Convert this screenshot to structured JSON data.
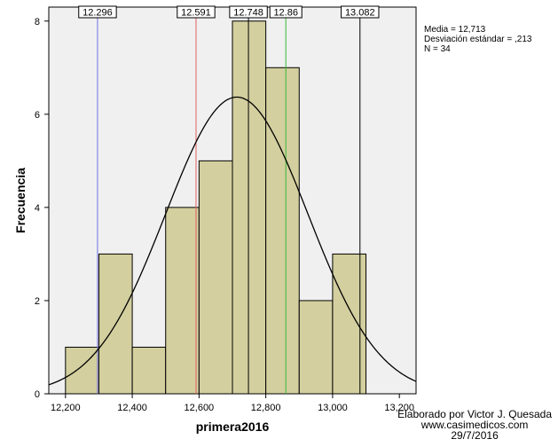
{
  "chart_data": {
    "type": "bar",
    "bins": [
      {
        "start": 12200,
        "end": 12300,
        "count": 1
      },
      {
        "start": 12300,
        "end": 12400,
        "count": 3
      },
      {
        "start": 12400,
        "end": 12500,
        "count": 1
      },
      {
        "start": 12500,
        "end": 12600,
        "count": 4
      },
      {
        "start": 12600,
        "end": 12700,
        "count": 5
      },
      {
        "start": 12700,
        "end": 12800,
        "count": 8
      },
      {
        "start": 12800,
        "end": 12900,
        "count": 7
      },
      {
        "start": 12900,
        "end": 13000,
        "count": 2
      },
      {
        "start": 13000,
        "end": 13100,
        "count": 3
      }
    ],
    "xlabel": "primera2016",
    "ylabel": "Frecuencia",
    "xlim": [
      12150,
      13250
    ],
    "ylim": [
      0,
      8.3
    ],
    "x_ticks": [
      12200,
      12400,
      12600,
      12800,
      13000,
      13200
    ],
    "x_tick_labels": [
      "12,200",
      "12,400",
      "12,600",
      "12,800",
      "13,000",
      "13,200"
    ],
    "y_ticks": [
      0,
      2,
      4,
      6,
      8
    ],
    "y_tick_labels": [
      "0",
      "2",
      "4",
      "6",
      "8"
    ],
    "normal_curve": {
      "mean": 12713,
      "sd": 213,
      "n": 34,
      "bin_width": 100
    },
    "reference_lines": [
      {
        "value": 12296,
        "label": "12.296",
        "color": "#6f6fe6"
      },
      {
        "value": 12591,
        "label": "12.591",
        "color": "#e06060"
      },
      {
        "value": 12748,
        "label": "12.748",
        "color": "#000000"
      },
      {
        "value": 12860,
        "label": "12.86",
        "color": "#38b838"
      },
      {
        "value": 13082,
        "label": "13.082",
        "color": "#000000"
      }
    ],
    "grid": false,
    "bar_color": "#d3cf9f",
    "plot_background": "#f0f0f0"
  },
  "stats": {
    "mean_line": "Media = 12,713",
    "sd_line": "Desviación estándar = ,213",
    "n_line": "N = 34"
  },
  "credit": {
    "line1": "Elaborado por Victor J. Quesada",
    "line2": "www.casimedicos.com",
    "line3": "29/7/2016"
  }
}
